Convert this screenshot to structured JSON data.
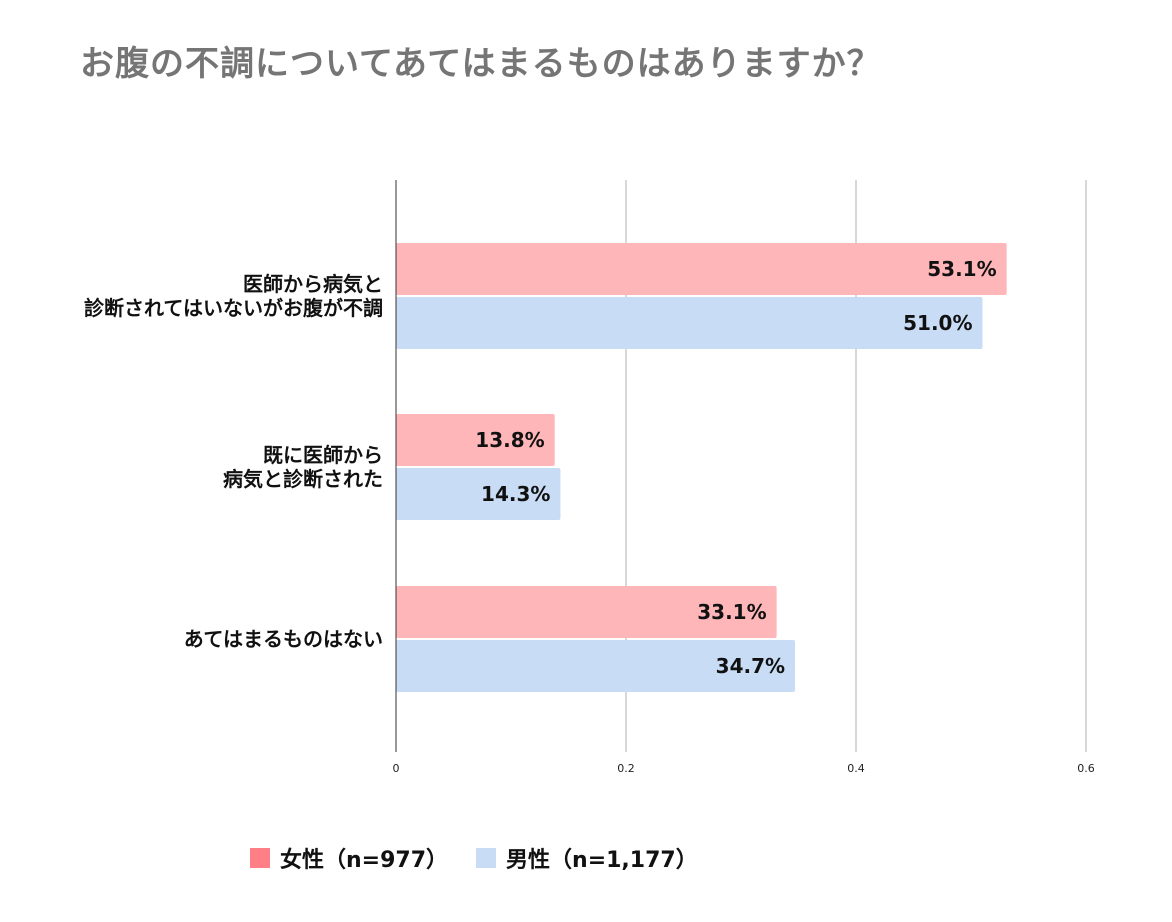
{
  "title": "お腹の不調についてあてはまるものはありますか？",
  "chart_data": {
    "type": "bar",
    "orientation": "horizontal",
    "title": "お腹の不調についてあてはまるものはありますか？",
    "categories": [
      [
        "医師から病気と",
        "診断されてはいないがお腹が不調"
      ],
      [
        "既に医師から",
        "病気と診断された"
      ],
      [
        "あてはまるものはない"
      ]
    ],
    "series": [
      {
        "name": "女性（n=977）",
        "color": "#ffb6b9",
        "legend_color": "#ff7f87",
        "values": [
          0.531,
          0.138,
          0.331
        ],
        "labels": [
          "53.1%",
          "13.8%",
          "33.1%"
        ]
      },
      {
        "name": "男性（n=1,177）",
        "color": "#c9dcf5",
        "legend_color": "#c9dcf5",
        "values": [
          0.51,
          0.143,
          0.347
        ],
        "labels": [
          "51.0%",
          "14.3%",
          "34.7%"
        ]
      }
    ],
    "xlim": [
      0,
      0.6
    ],
    "xticks": [
      0,
      0.2,
      0.4,
      0.6
    ],
    "xtick_labels": [
      "0",
      "0.2",
      "0.4",
      "0.6"
    ],
    "grid": true,
    "legend_position": "bottom"
  }
}
